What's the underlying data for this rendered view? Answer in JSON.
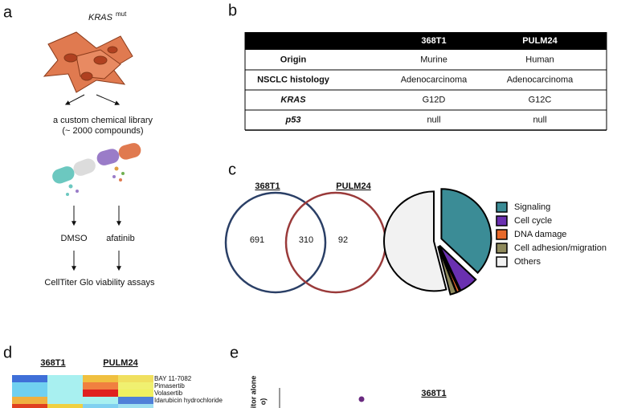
{
  "panel_a": {
    "letter": "a",
    "gene": "KRAS",
    "superscript": "mut",
    "library": [
      "a custom chemical library",
      "(~ 2000 compounds)"
    ],
    "conditions": [
      "DMSO",
      "afatinib"
    ],
    "assay": "CellTiter Glo viability assays"
  },
  "panel_b": {
    "letter": "b",
    "columns": [
      "368T1",
      "PULM24"
    ],
    "rows": [
      {
        "label": "Origin",
        "cells": [
          "Murine",
          "Human"
        ]
      },
      {
        "label": "NSCLC histology",
        "cells": [
          "Adenocarcinoma",
          "Adenocarcinoma"
        ]
      },
      {
        "label": "KRAS",
        "cells": [
          "G12D",
          "G12C"
        ]
      },
      {
        "label": "p53",
        "cells": [
          "null",
          "null"
        ]
      }
    ]
  },
  "panel_c": {
    "letter": "c",
    "sets": [
      "368T1",
      "PULM24"
    ],
    "counts": [
      "691",
      "310",
      "92"
    ]
  },
  "chart_data": {
    "type": "pie",
    "categories": [
      "Signaling",
      "Cell cycle",
      "DNA damage",
      "Cell adhesion/migration",
      "Others"
    ],
    "values": [
      37,
      6,
      1,
      2,
      54
    ],
    "colors": [
      "#3b8c96",
      "#6a30b0",
      "#e8692a",
      "#8f8a5c",
      "#f2f2f2"
    ]
  },
  "panel_d": {
    "letter": "d",
    "columns": [
      "368T1",
      "PULM24"
    ],
    "rows": [
      "BAY 11-7082",
      "Pimasertib",
      "Volasertib",
      "Idarubicin hydrochloride",
      null
    ],
    "cell_colors": [
      [
        "#3f6fd8",
        "#a8f0f0",
        "#f0c040",
        "#f0e060"
      ],
      [
        "#70d0f0",
        "#a8f0f0",
        "#f08040",
        "#f0f070"
      ],
      [
        "#70d0f0",
        "#a8f0f0",
        "#e02020",
        "#f0f060"
      ],
      [
        "#f0b040",
        "#a8f0f0",
        "#a8f0f0",
        "#5080d8"
      ],
      [
        "#e04020",
        "#f0d040",
        "#80d0f0",
        "#a0e0f0"
      ]
    ]
  },
  "panel_e": {
    "letter": "e",
    "title": "368T1",
    "y_label": [
      "itor alone",
      "o)"
    ]
  }
}
